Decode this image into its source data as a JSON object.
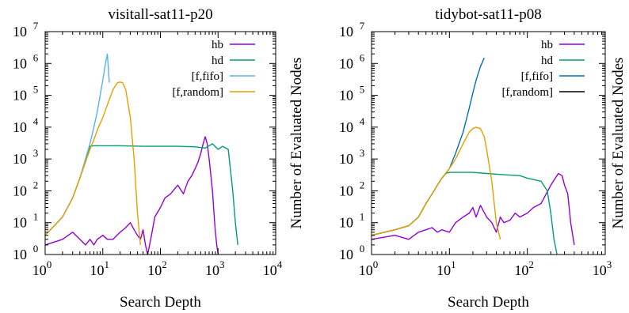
{
  "chart_data": [
    {
      "type": "line",
      "title": "visitall-sat11-p20",
      "xlabel": "Search Depth",
      "ylabel": "Number of Evaluated Nodes",
      "x_scale": "log",
      "y_scale": "log",
      "xlim": [
        1,
        10000
      ],
      "ylim": [
        1,
        10000000
      ],
      "x_ticks": [
        {
          "value": 1,
          "base": "10",
          "exp": "0"
        },
        {
          "value": 10,
          "base": "10",
          "exp": "1"
        },
        {
          "value": 100,
          "base": "10",
          "exp": "2"
        },
        {
          "value": 1000,
          "base": "10",
          "exp": "3"
        },
        {
          "value": 10000,
          "base": "10",
          "exp": "4"
        }
      ],
      "y_ticks": [
        {
          "value": 1,
          "base": "10",
          "exp": "0"
        },
        {
          "value": 10,
          "base": "10",
          "exp": "1"
        },
        {
          "value": 100,
          "base": "10",
          "exp": "2"
        },
        {
          "value": 1000,
          "base": "10",
          "exp": "3"
        },
        {
          "value": 10000,
          "base": "10",
          "exp": "4"
        },
        {
          "value": 100000,
          "base": "10",
          "exp": "5"
        },
        {
          "value": 1000000,
          "base": "10",
          "exp": "6"
        },
        {
          "value": 10000000,
          "base": "10",
          "exp": "7"
        }
      ],
      "legend_position": "top-right",
      "series": [
        {
          "name": "hb",
          "color": "#9400d3",
          "x": [
            1,
            2,
            3,
            4,
            5,
            6,
            7,
            8,
            10,
            12,
            15,
            20,
            25,
            30,
            35,
            40,
            45,
            50,
            55,
            60,
            70,
            80,
            100,
            120,
            150,
            180,
            200,
            250,
            300,
            350,
            400,
            450,
            500,
            550,
            600,
            650,
            700,
            750,
            800,
            850,
            900,
            950,
            1000
          ],
          "y": [
            2,
            3,
            5,
            3,
            2,
            3,
            2,
            3,
            4,
            3,
            3,
            5,
            7,
            10,
            6,
            4,
            3,
            6,
            2,
            1,
            4,
            15,
            30,
            60,
            80,
            120,
            150,
            80,
            200,
            300,
            500,
            800,
            1500,
            3000,
            5000,
            3000,
            1000,
            300,
            100,
            20,
            5,
            2,
            1
          ]
        },
        {
          "name": "hd",
          "color": "#009e73",
          "x": [
            1,
            2,
            3,
            4,
            5,
            6,
            7,
            10,
            20,
            50,
            100,
            200,
            400,
            600,
            800,
            1000,
            1200,
            1500,
            1800,
            2000,
            2200
          ],
          "y": [
            4,
            15,
            60,
            250,
            800,
            2500,
            2600,
            2600,
            2600,
            2500,
            2500,
            2500,
            2400,
            2200,
            3000,
            2000,
            2500,
            2000,
            100,
            10,
            2
          ]
        },
        {
          "name": "[f,fifo]",
          "color": "#56b4e9",
          "x": [
            1,
            2,
            3,
            4,
            5,
            6,
            7,
            8,
            9,
            10,
            11,
            12,
            13
          ],
          "y": [
            4,
            15,
            60,
            250,
            1000,
            3000,
            10000,
            30000,
            100000,
            300000,
            900000,
            2000000,
            250000
          ]
        },
        {
          "name": "[f,random]",
          "color": "#e69f00",
          "x": [
            1,
            2,
            3,
            4,
            5,
            6,
            7,
            8,
            10,
            12,
            15,
            18,
            20,
            22,
            25,
            30,
            35,
            40,
            45
          ],
          "y": [
            4,
            15,
            60,
            250,
            800,
            2000,
            4000,
            8000,
            20000,
            50000,
            150000,
            250000,
            260000,
            250000,
            150000,
            20000,
            1000,
            20,
            2
          ]
        }
      ]
    },
    {
      "type": "line",
      "title": "tidybot-sat11-p08",
      "xlabel": "Search Depth",
      "ylabel": "Number of Evaluated Nodes",
      "x_scale": "log",
      "y_scale": "log",
      "xlim": [
        1,
        1000
      ],
      "ylim": [
        1,
        10000000
      ],
      "x_ticks": [
        {
          "value": 1,
          "base": "10",
          "exp": "0"
        },
        {
          "value": 10,
          "base": "10",
          "exp": "1"
        },
        {
          "value": 100,
          "base": "10",
          "exp": "2"
        },
        {
          "value": 1000,
          "base": "10",
          "exp": "3"
        }
      ],
      "y_ticks": [
        {
          "value": 1,
          "base": "10",
          "exp": "0"
        },
        {
          "value": 10,
          "base": "10",
          "exp": "1"
        },
        {
          "value": 100,
          "base": "10",
          "exp": "2"
        },
        {
          "value": 1000,
          "base": "10",
          "exp": "3"
        },
        {
          "value": 10000,
          "base": "10",
          "exp": "4"
        },
        {
          "value": 100000,
          "base": "10",
          "exp": "5"
        },
        {
          "value": 1000000,
          "base": "10",
          "exp": "6"
        },
        {
          "value": 10000000,
          "base": "10",
          "exp": "7"
        }
      ],
      "legend_position": "top-right",
      "series": [
        {
          "name": "hb",
          "color": "#9400d3",
          "x": [
            1,
            2,
            3,
            4,
            5,
            6,
            7,
            8,
            10,
            12,
            15,
            18,
            20,
            22,
            25,
            30,
            35,
            40,
            45,
            50,
            60,
            70,
            80,
            100,
            120,
            150,
            200,
            250,
            280,
            300,
            330,
            360,
            400
          ],
          "y": [
            3,
            4,
            3,
            5,
            6,
            7,
            5,
            6,
            5,
            10,
            15,
            20,
            30,
            15,
            35,
            15,
            10,
            5,
            15,
            10,
            12,
            20,
            15,
            20,
            30,
            40,
            150,
            350,
            300,
            150,
            80,
            10,
            2
          ]
        },
        {
          "name": "hd",
          "color": "#009e73",
          "x": [
            1,
            2,
            3,
            4,
            5,
            6,
            7,
            8,
            9,
            10,
            15,
            20,
            30,
            50,
            80,
            100,
            150,
            180,
            200,
            220,
            240
          ],
          "y": [
            4,
            6,
            8,
            15,
            40,
            80,
            150,
            250,
            350,
            380,
            380,
            380,
            350,
            320,
            300,
            250,
            200,
            100,
            20,
            3,
            1
          ]
        },
        {
          "name": "[f,fifo]",
          "color": "#0072b2",
          "x": [
            1,
            2,
            3,
            4,
            5,
            6,
            7,
            8,
            10,
            12,
            15,
            18,
            20,
            22,
            25,
            28
          ],
          "y": [
            4,
            6,
            8,
            15,
            40,
            80,
            150,
            250,
            500,
            1500,
            7000,
            40000,
            120000,
            300000,
            800000,
            1500000
          ]
        },
        {
          "name": "[f,random]",
          "color": "#000000",
          "x": [],
          "y": []
        },
        {
          "name": "",
          "color": "#e69f00",
          "x": [
            1,
            2,
            3,
            4,
            5,
            6,
            7,
            8,
            10,
            12,
            15,
            18,
            20,
            22,
            25,
            28,
            30,
            35,
            40,
            45
          ],
          "y": [
            4,
            6,
            8,
            15,
            40,
            80,
            150,
            250,
            500,
            1000,
            3000,
            7000,
            9000,
            10000,
            9000,
            5000,
            2000,
            200,
            10,
            3
          ]
        }
      ]
    }
  ]
}
